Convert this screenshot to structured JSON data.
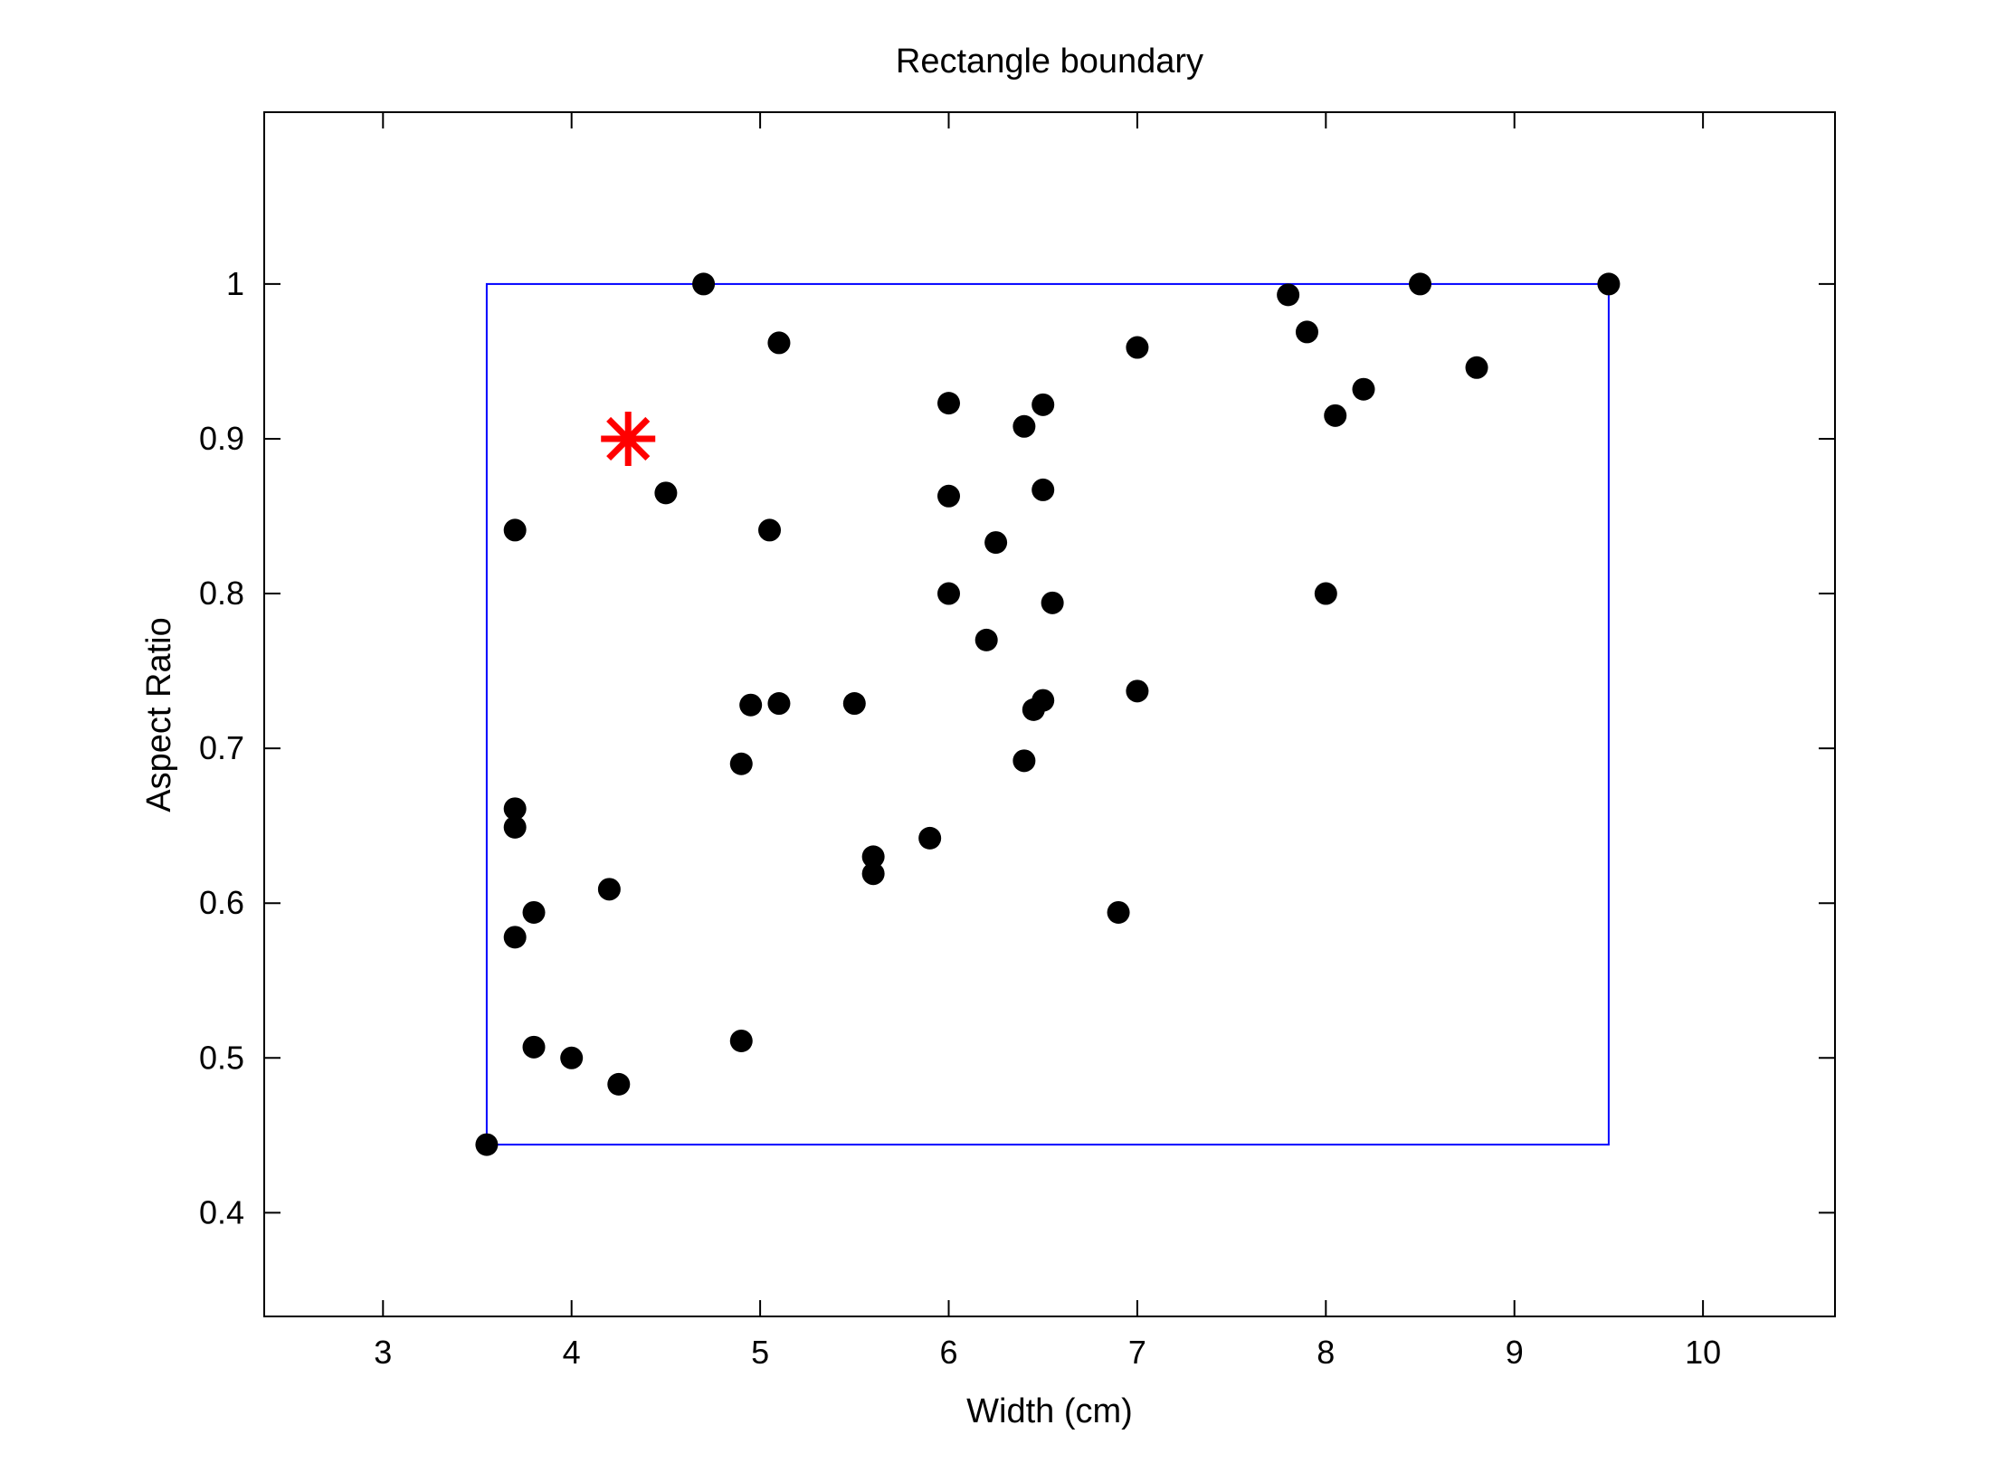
{
  "chart_data": {
    "type": "scatter",
    "title": "Rectangle boundary",
    "xlabel": "Width (cm)",
    "ylabel": "Aspect Ratio",
    "xlim": [
      2.37,
      10.7
    ],
    "ylim": [
      0.333,
      1.111
    ],
    "xticks": [
      3,
      4,
      5,
      6,
      7,
      8,
      9,
      10
    ],
    "yticks": [
      0.4,
      0.5,
      0.6,
      0.7,
      0.8,
      0.9,
      1
    ],
    "grid": false,
    "legend": "none",
    "colors": {
      "points": "#000000",
      "boundary": "#0000ff",
      "marker": "#ff0000"
    },
    "series": [
      {
        "values": [
          [
            3.55,
            0.444
          ],
          [
            3.7,
            0.841
          ],
          [
            3.7,
            0.661
          ],
          [
            3.7,
            0.649
          ],
          [
            3.8,
            0.594
          ],
          [
            3.7,
            0.578
          ],
          [
            3.8,
            0.507
          ],
          [
            4.0,
            0.5
          ],
          [
            4.25,
            0.483
          ],
          [
            4.2,
            0.609
          ],
          [
            4.5,
            0.865
          ],
          [
            4.7,
            1.0
          ],
          [
            5.1,
            0.962
          ],
          [
            5.05,
            0.841
          ],
          [
            4.95,
            0.728
          ],
          [
            5.1,
            0.729
          ],
          [
            4.9,
            0.69
          ],
          [
            4.9,
            0.511
          ],
          [
            5.5,
            0.729
          ],
          [
            5.6,
            0.63
          ],
          [
            5.6,
            0.619
          ],
          [
            5.9,
            0.642
          ],
          [
            6.0,
            0.923
          ],
          [
            6.0,
            0.863
          ],
          [
            6.0,
            0.8
          ],
          [
            6.2,
            0.77
          ],
          [
            6.25,
            0.833
          ],
          [
            6.4,
            0.908
          ],
          [
            6.5,
            0.922
          ],
          [
            6.5,
            0.867
          ],
          [
            6.55,
            0.794
          ],
          [
            6.45,
            0.725
          ],
          [
            6.5,
            0.731
          ],
          [
            6.4,
            0.692
          ],
          [
            6.9,
            0.594
          ],
          [
            7.0,
            0.959
          ],
          [
            7.0,
            0.737
          ],
          [
            7.8,
            0.993
          ],
          [
            7.9,
            0.969
          ],
          [
            8.0,
            0.8
          ],
          [
            8.05,
            0.915
          ],
          [
            8.2,
            0.932
          ],
          [
            8.5,
            1.0
          ],
          [
            8.8,
            0.946
          ],
          [
            9.5,
            1.0
          ]
        ]
      }
    ],
    "boundary": {
      "xmin": 3.55,
      "xmax": 9.5,
      "ymin": 0.444,
      "ymax": 1.0
    },
    "query_point": [
      4.3,
      0.9
    ]
  }
}
